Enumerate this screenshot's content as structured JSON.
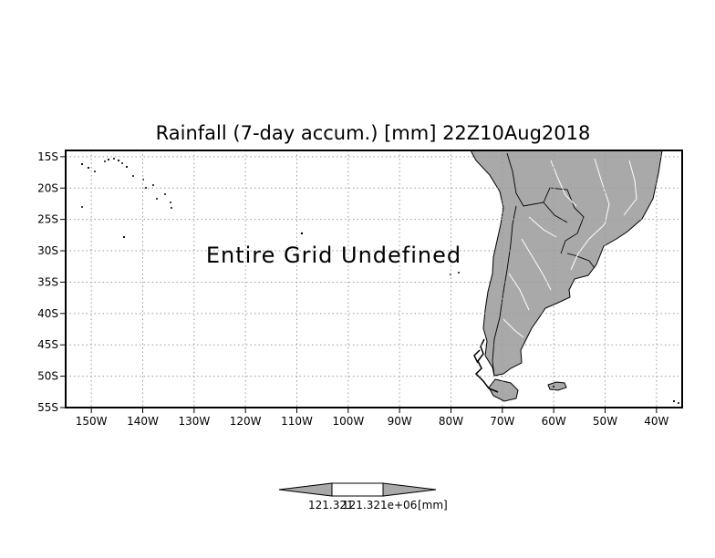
{
  "title": "Rainfall (7-day accum.) [mm] 22Z10Aug2018",
  "message": "Entire Grid Undefined",
  "map": {
    "lon_range": [
      -155,
      -35
    ],
    "lat_range": [
      -55,
      -14
    ],
    "grid": true,
    "land_color": "#a9a9a9",
    "lat_labels": [
      {
        "lat": -15,
        "label": "15S"
      },
      {
        "lat": -20,
        "label": "20S"
      },
      {
        "lat": -25,
        "label": "25S"
      },
      {
        "lat": -30,
        "label": "30S"
      },
      {
        "lat": -35,
        "label": "35S"
      },
      {
        "lat": -40,
        "label": "40S"
      },
      {
        "lat": -45,
        "label": "45S"
      },
      {
        "lat": -50,
        "label": "50S"
      },
      {
        "lat": -55,
        "label": "55S"
      }
    ],
    "lon_labels": [
      {
        "lon": -150,
        "label": "150W"
      },
      {
        "lon": -140,
        "label": "140W"
      },
      {
        "lon": -130,
        "label": "130W"
      },
      {
        "lon": -120,
        "label": "120W"
      },
      {
        "lon": -110,
        "label": "110W"
      },
      {
        "lon": -100,
        "label": "100W"
      },
      {
        "lon": -90,
        "label": "90W"
      },
      {
        "lon": -80,
        "label": "80W"
      },
      {
        "lon": -70,
        "label": "70W"
      },
      {
        "lon": -60,
        "label": "60W"
      },
      {
        "lon": -50,
        "label": "50W"
      },
      {
        "lon": -40,
        "label": "40W"
      }
    ]
  },
  "colorbar": {
    "labels": [
      "121.321",
      "121.321e+06",
      "[mm]"
    ]
  }
}
